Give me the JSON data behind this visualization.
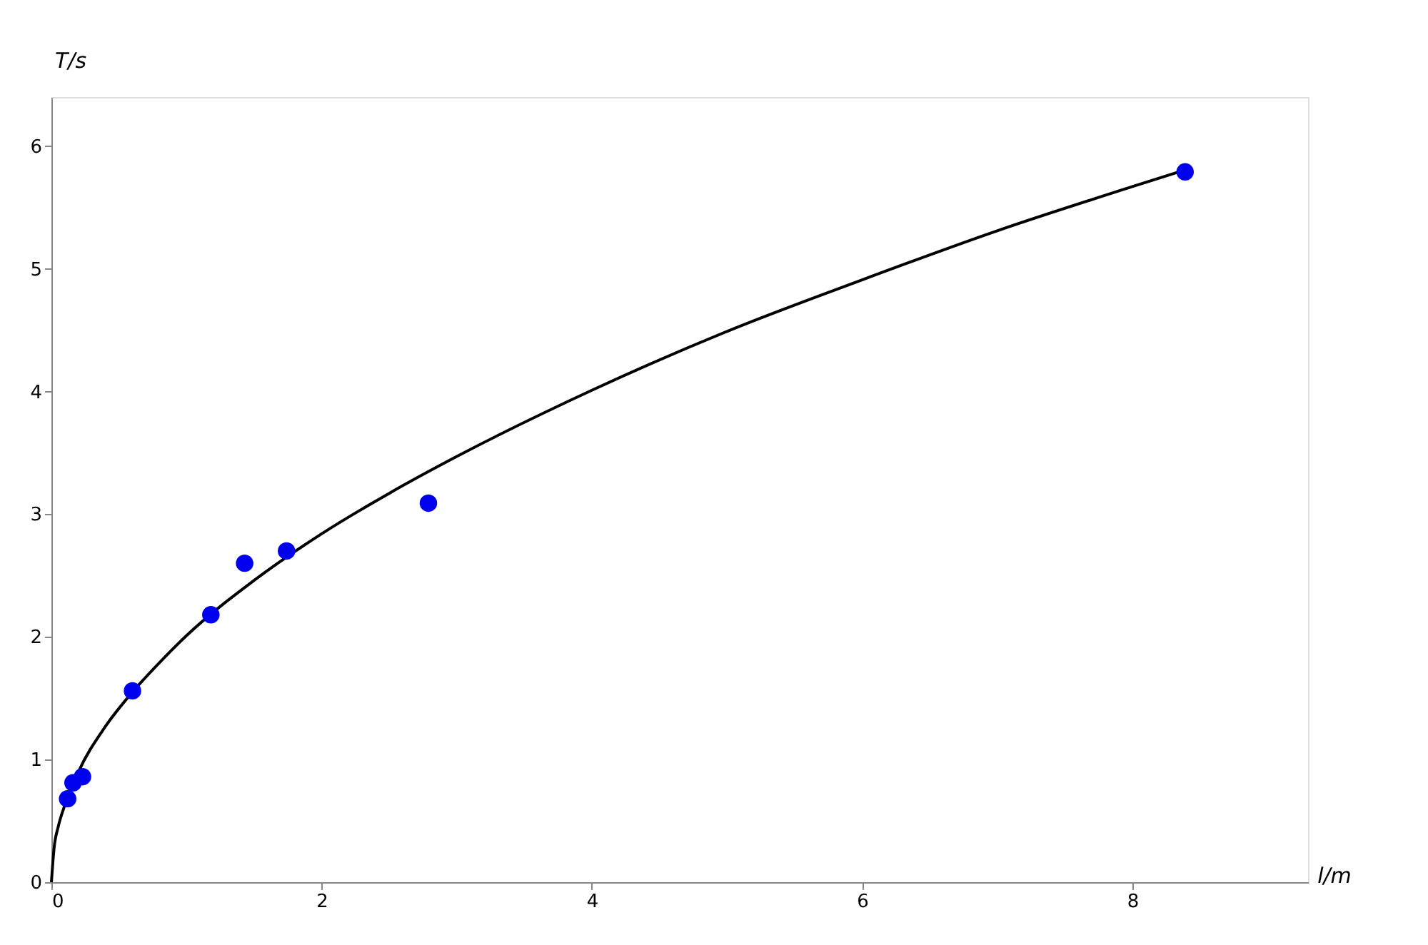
{
  "chart_data": {
    "type": "scatter",
    "xlabel": "l/m",
    "ylabel": "T/s",
    "xlim": [
      0,
      9.3
    ],
    "ylim": [
      0,
      6.4
    ],
    "xticks": [
      0,
      2,
      4,
      6,
      8
    ],
    "yticks": [
      0,
      1,
      2,
      3,
      4,
      5,
      6
    ],
    "grid": false,
    "series": [
      {
        "color": "#0000ee",
        "marker": "circle",
        "x": [
          0.12,
          0.16,
          0.23,
          0.6,
          1.18,
          1.43,
          1.74,
          2.79,
          8.39
        ],
        "values": [
          0.68,
          0.81,
          0.86,
          1.56,
          2.18,
          2.6,
          2.7,
          3.09,
          5.79
        ]
      },
      {
        "type": "line",
        "color": "#000000",
        "line_style": "solid",
        "x": [
          0,
          0.02,
          0.05,
          0.1,
          0.2,
          0.4,
          0.6,
          0.8,
          1,
          1.5,
          2,
          2.5,
          3,
          4,
          5,
          6,
          7,
          8,
          8.4
        ],
        "values": [
          0,
          0.28,
          0.45,
          0.63,
          0.9,
          1.27,
          1.55,
          1.79,
          2.01,
          2.46,
          2.84,
          3.17,
          3.47,
          4.01,
          4.49,
          4.91,
          5.31,
          5.67,
          5.81
        ]
      }
    ]
  }
}
